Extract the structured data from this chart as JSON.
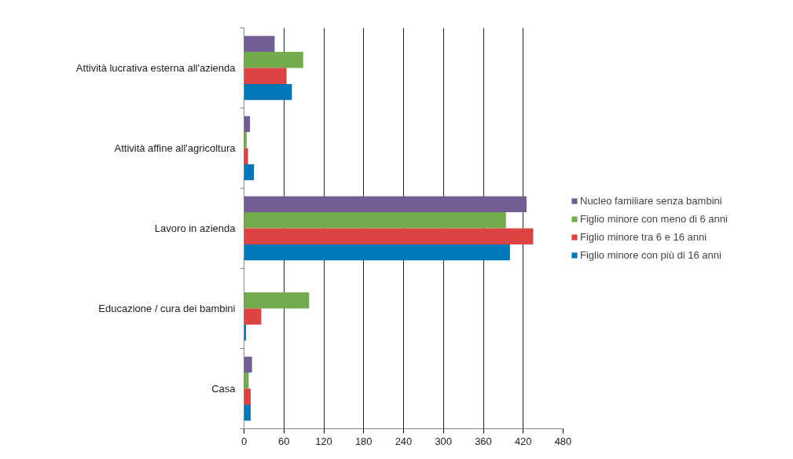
{
  "chart_data": {
    "type": "bar",
    "orientation": "horizontal",
    "categories": [
      "Attività lucrativa esterna all'azienda",
      "Attività affine all'agricoltura",
      "Lavoro in azienda",
      "Educazione / cura dei bambini",
      "Casa"
    ],
    "series": [
      {
        "name": "Nucleo familiare senza bambini",
        "color": "#725e93",
        "values": [
          46,
          9,
          425,
          null,
          12
        ]
      },
      {
        "name": "Figlio minore con meno di 6 anni",
        "color": "#72ac4d",
        "values": [
          89,
          4,
          394,
          98,
          7
        ]
      },
      {
        "name": "Figlio minore tra 6 e 16 anni",
        "color": "#dc4444",
        "values": [
          64,
          6,
          435,
          26,
          10
        ]
      },
      {
        "name": "Figlio minore con più di 16 anni",
        "color": "#0078b8",
        "values": [
          72,
          15,
          400,
          3,
          10
        ]
      }
    ],
    "xlim": [
      0,
      480
    ],
    "xticks": [
      0,
      60,
      120,
      180,
      240,
      300,
      360,
      420,
      480
    ],
    "grid": "x",
    "legend": "right"
  }
}
